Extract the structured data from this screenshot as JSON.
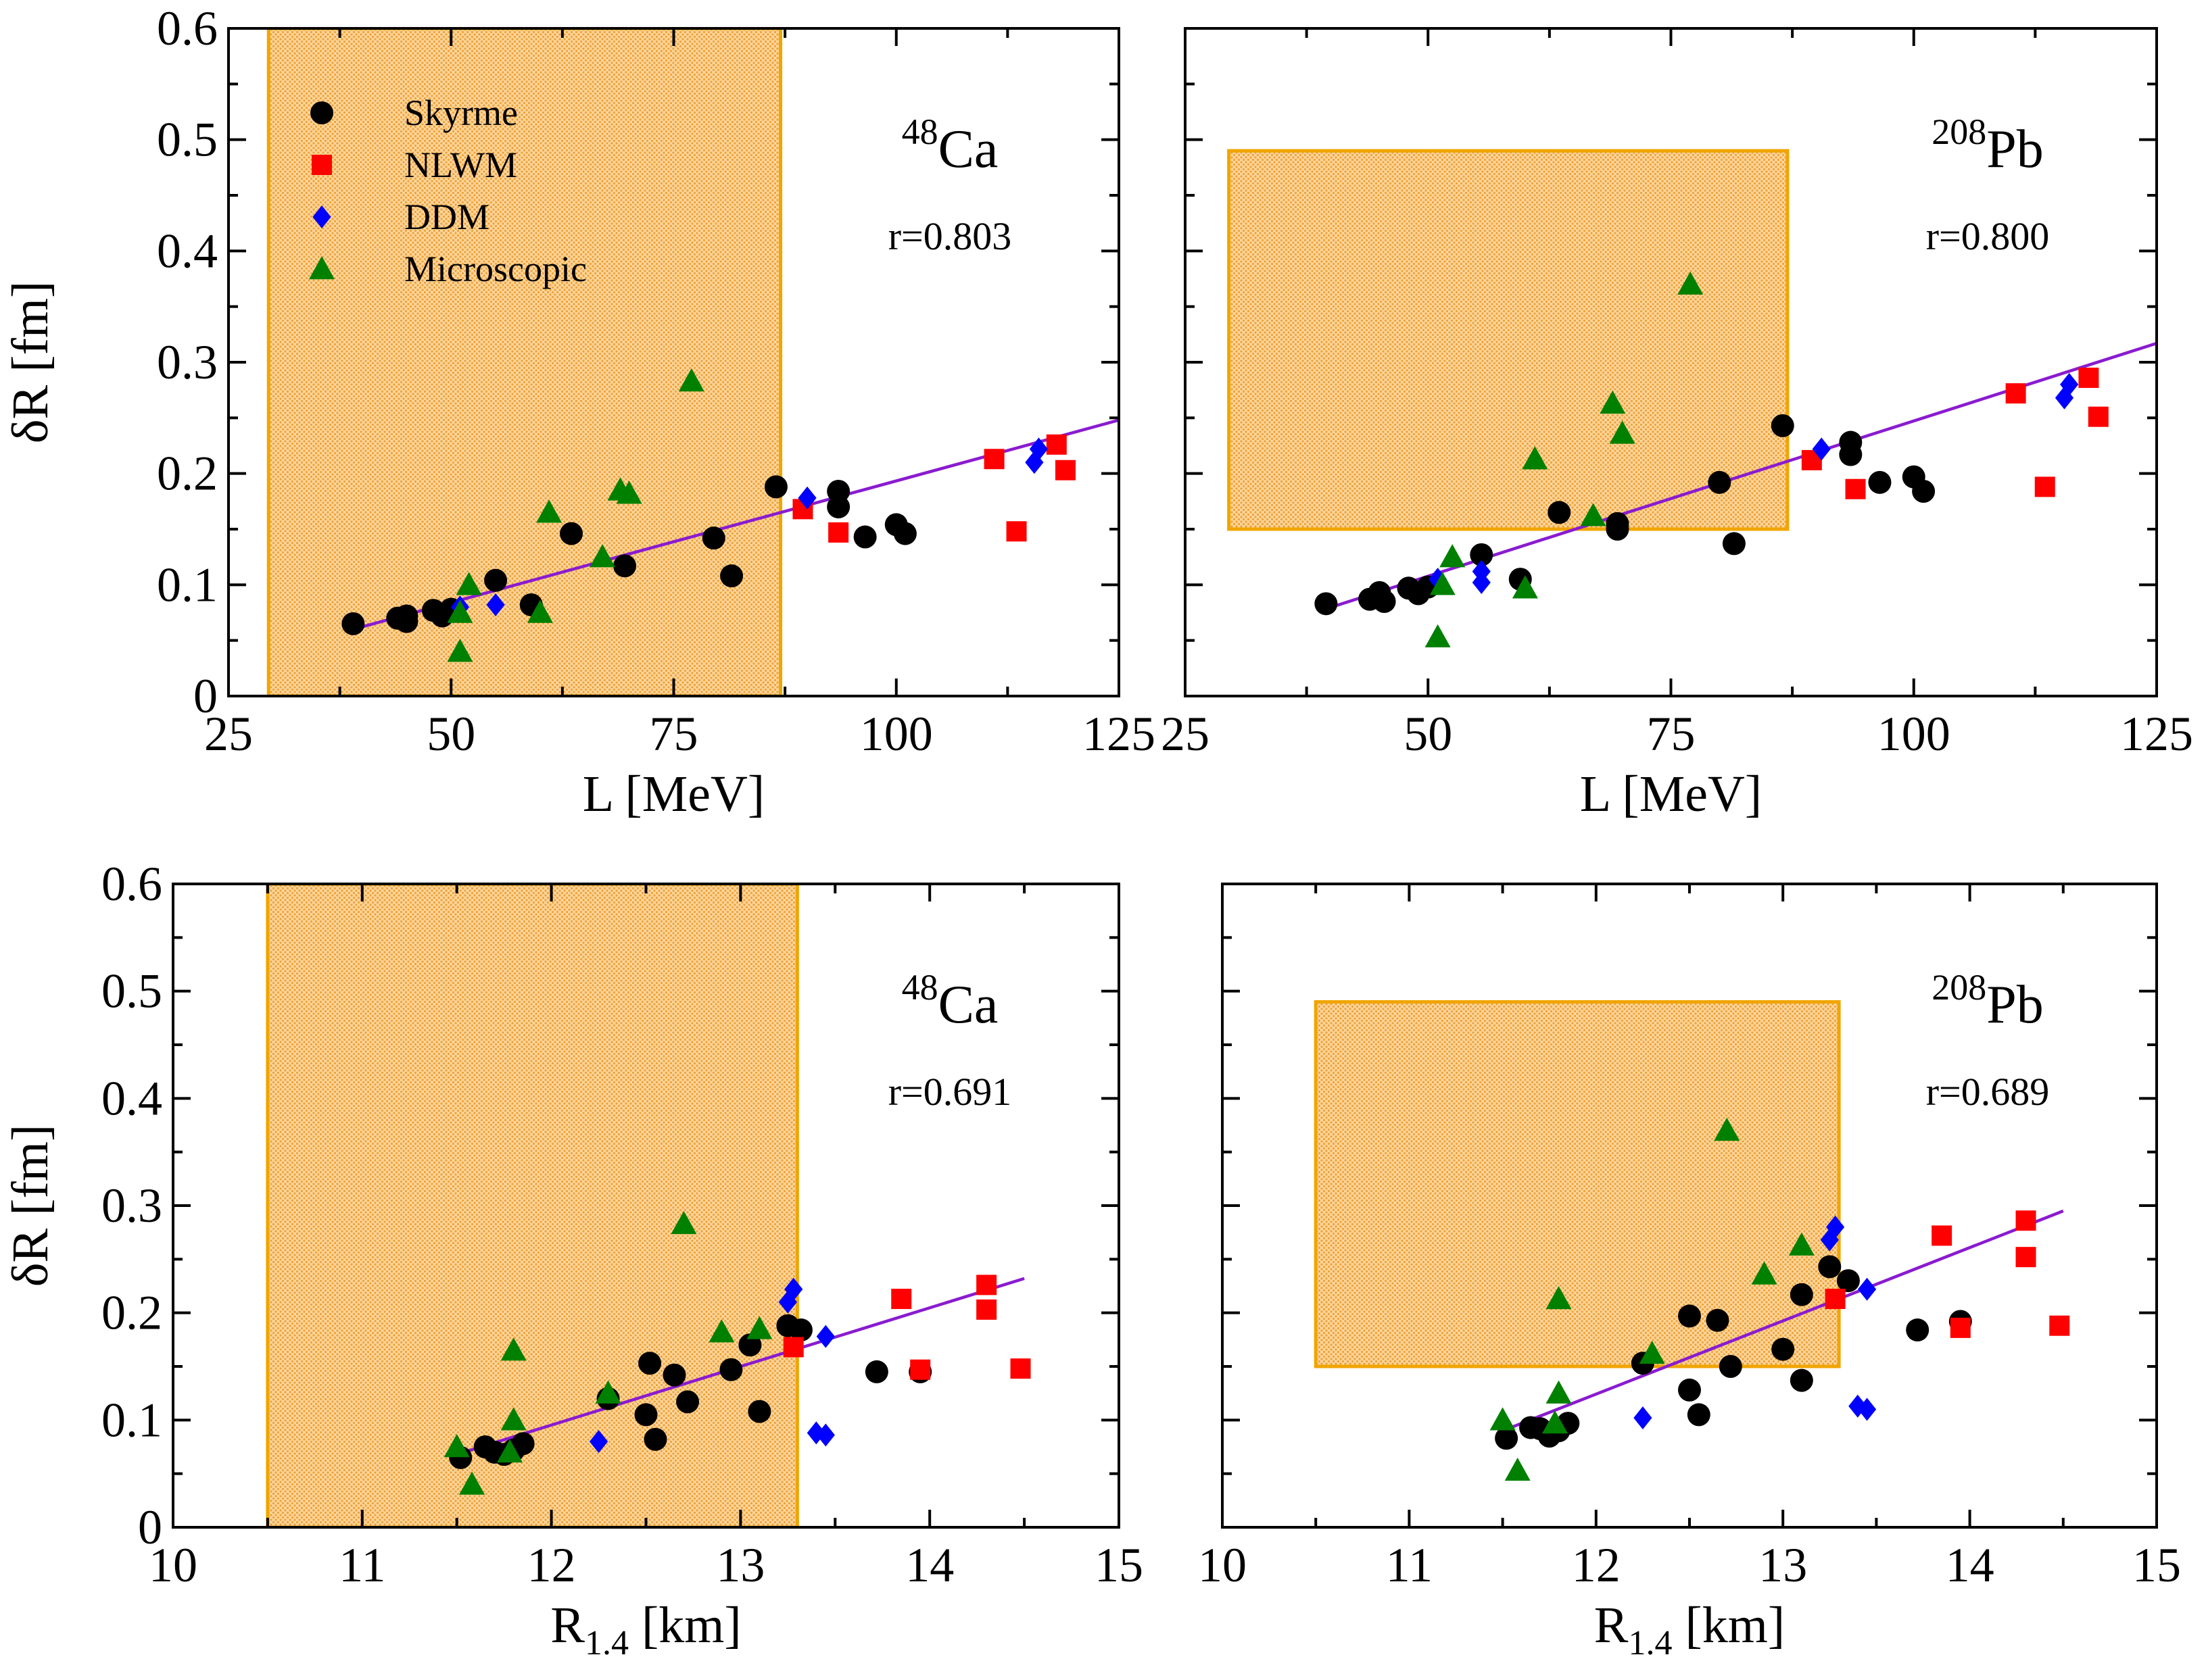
{
  "figure": {
    "legend": {
      "entries": [
        {
          "name": "Skyrme",
          "marker": "circle",
          "color": "#000000"
        },
        {
          "name": "NLWM",
          "marker": "square",
          "color": "#ff0000"
        },
        {
          "name": "DDM",
          "marker": "diamond",
          "color": "#0000ff"
        },
        {
          "name": "Microscopic",
          "marker": "triangle",
          "color": "#008000"
        }
      ]
    },
    "colors": {
      "fit_line": "#8a1bd0",
      "band_edge": "#f0a500",
      "band_fill": "#fbcf8a"
    }
  },
  "chart_data": [
    {
      "type": "scatter",
      "panel": "top-left",
      "nucleus": {
        "mass": "48",
        "symbol": "Ca"
      },
      "r_text": "r=0.803",
      "xlabel": "L [MeV]",
      "ylabel": "δR [fm]",
      "xlim": [
        25,
        125
      ],
      "ylim": [
        0,
        0.6
      ],
      "x_ticks": [
        "25",
        "50",
        "75",
        "100",
        "125"
      ],
      "y_ticks": [
        "0",
        "0.1",
        "0.2",
        "0.3",
        "0.4",
        "0.5",
        "0.6"
      ],
      "show_x_ticks": true,
      "show_y_ticks": true,
      "band": {
        "x": [
          29.5,
          87
        ],
        "y": [
          0,
          0.6
        ]
      },
      "fit_line": {
        "x": [
          39,
          125
        ],
        "y": [
          0.06,
          0.248
        ]
      },
      "series": [
        {
          "name": "Skyrme",
          "points": [
            [
              39,
              0.065
            ],
            [
              44,
              0.07
            ],
            [
              45,
              0.072
            ],
            [
              45,
              0.067
            ],
            [
              48,
              0.077
            ],
            [
              49,
              0.072
            ],
            [
              50,
              0.078
            ],
            [
              55,
              0.104
            ],
            [
              59,
              0.082
            ],
            [
              63.5,
              0.146
            ],
            [
              69.5,
              0.117
            ],
            [
              79.5,
              0.142
            ],
            [
              81.5,
              0.108
            ],
            [
              86.5,
              0.188
            ],
            [
              93.5,
              0.184
            ],
            [
              93.5,
              0.17
            ],
            [
              96.5,
              0.143
            ],
            [
              100,
              0.154
            ],
            [
              101,
              0.146
            ]
          ]
        },
        {
          "name": "NLWM",
          "points": [
            [
              89.5,
              0.168
            ],
            [
              93.5,
              0.147
            ],
            [
              111,
              0.213
            ],
            [
              113.5,
              0.148
            ],
            [
              118,
              0.226
            ],
            [
              119,
              0.203
            ]
          ]
        },
        {
          "name": "DDM",
          "points": [
            [
              51,
              0.08
            ],
            [
              55,
              0.082
            ],
            [
              90,
              0.178
            ],
            [
              116,
              0.222
            ],
            [
              115.5,
              0.21
            ]
          ]
        },
        {
          "name": "Microscopic",
          "points": [
            [
              51,
              0.04
            ],
            [
              51,
              0.075
            ],
            [
              52,
              0.1
            ],
            [
              60,
              0.075
            ],
            [
              61,
              0.165
            ],
            [
              67,
              0.125
            ],
            [
              69,
              0.185
            ],
            [
              70,
              0.182
            ],
            [
              77,
              0.283
            ]
          ]
        }
      ]
    },
    {
      "type": "scatter",
      "panel": "top-right",
      "nucleus": {
        "mass": "208",
        "symbol": "Pb"
      },
      "r_text": "r=0.800",
      "xlabel": "L [MeV]",
      "ylabel": "",
      "xlim": [
        25,
        125
      ],
      "ylim": [
        0,
        0.6
      ],
      "x_ticks": [
        "25",
        "50",
        "75",
        "100",
        "125"
      ],
      "y_ticks": [],
      "show_x_ticks": true,
      "show_y_ticks": false,
      "band": {
        "x": [
          29.5,
          87
        ],
        "y": [
          0.15,
          0.49
        ]
      },
      "fit_line": {
        "x": [
          39,
          125
        ],
        "y": [
          0.077,
          0.317
        ]
      },
      "series": [
        {
          "name": "Skyrme",
          "points": [
            [
              39.5,
              0.083
            ],
            [
              44,
              0.087
            ],
            [
              45,
              0.093
            ],
            [
              45.5,
              0.085
            ],
            [
              48,
              0.097
            ],
            [
              49,
              0.092
            ],
            [
              50,
              0.098
            ],
            [
              55.5,
              0.127
            ],
            [
              59.5,
              0.105
            ],
            [
              63.5,
              0.165
            ],
            [
              69.5,
              0.155
            ],
            [
              69.5,
              0.15
            ],
            [
              80,
              0.192
            ],
            [
              81.5,
              0.137
            ],
            [
              86.5,
              0.243
            ],
            [
              93.5,
              0.228
            ],
            [
              93.5,
              0.217
            ],
            [
              96.5,
              0.192
            ],
            [
              100,
              0.197
            ],
            [
              101,
              0.184
            ]
          ]
        },
        {
          "name": "NLWM",
          "points": [
            [
              89.5,
              0.212
            ],
            [
              94,
              0.186
            ],
            [
              110.5,
              0.272
            ],
            [
              113.5,
              0.188
            ],
            [
              118,
              0.286
            ],
            [
              119,
              0.251
            ]
          ]
        },
        {
          "name": "DDM",
          "points": [
            [
              51,
              0.105
            ],
            [
              55.5,
              0.112
            ],
            [
              55.5,
              0.102
            ],
            [
              90.5,
              0.222
            ],
            [
              115.5,
              0.268
            ],
            [
              116,
              0.28
            ]
          ]
        },
        {
          "name": "Microscopic",
          "points": [
            [
              51,
              0.053
            ],
            [
              51.5,
              0.1
            ],
            [
              52.5,
              0.125
            ],
            [
              60,
              0.097
            ],
            [
              61,
              0.213
            ],
            [
              67,
              0.162
            ],
            [
              69,
              0.263
            ],
            [
              70,
              0.236
            ],
            [
              77,
              0.37
            ]
          ]
        }
      ]
    },
    {
      "type": "scatter",
      "panel": "bottom-left",
      "nucleus": {
        "mass": "48",
        "symbol": "Ca"
      },
      "r_text": "r=0.691",
      "xlabel": "R1.4 [km]",
      "ylabel": "δR [fm]",
      "xlim": [
        10,
        15
      ],
      "ylim": [
        0,
        0.6
      ],
      "x_ticks": [
        "10",
        "11",
        "12",
        "13",
        "14",
        "15"
      ],
      "y_ticks": [
        "0",
        "0.1",
        "0.2",
        "0.3",
        "0.4",
        "0.5",
        "0.6"
      ],
      "show_x_ticks": true,
      "show_y_ticks": true,
      "band": {
        "x": [
          10.5,
          13.3
        ],
        "y": [
          0,
          0.6
        ]
      },
      "fit_line": {
        "x": [
          11.5,
          14.5
        ],
        "y": [
          0.068,
          0.232
        ]
      },
      "series": [
        {
          "name": "Skyrme",
          "points": [
            [
              11.52,
              0.065
            ],
            [
              11.65,
              0.075
            ],
            [
              11.7,
              0.07
            ],
            [
              11.75,
              0.068
            ],
            [
              11.8,
              0.072
            ],
            [
              11.85,
              0.078
            ],
            [
              12.3,
              0.12
            ],
            [
              12.5,
              0.105
            ],
            [
              12.52,
              0.153
            ],
            [
              12.55,
              0.082
            ],
            [
              12.65,
              0.142
            ],
            [
              12.72,
              0.117
            ],
            [
              12.95,
              0.147
            ],
            [
              13.05,
              0.17
            ],
            [
              13.1,
              0.108
            ],
            [
              13.25,
              0.188
            ],
            [
              13.32,
              0.184
            ],
            [
              13.72,
              0.145
            ],
            [
              13.95,
              0.145
            ]
          ]
        },
        {
          "name": "NLWM",
          "points": [
            [
              13.28,
              0.168
            ],
            [
              13.85,
              0.213
            ],
            [
              13.95,
              0.147
            ],
            [
              14.3,
              0.226
            ],
            [
              14.3,
              0.203
            ],
            [
              14.48,
              0.148
            ]
          ]
        },
        {
          "name": "DDM",
          "points": [
            [
              12.25,
              0.08
            ],
            [
              13.25,
              0.21
            ],
            [
              13.28,
              0.222
            ],
            [
              13.4,
              0.088
            ],
            [
              13.45,
              0.086
            ],
            [
              13.45,
              0.178
            ]
          ]
        },
        {
          "name": "Microscopic",
          "points": [
            [
              11.5,
              0.075
            ],
            [
              11.58,
              0.04
            ],
            [
              11.78,
              0.07
            ],
            [
              11.8,
              0.165
            ],
            [
              11.8,
              0.1
            ],
            [
              12.3,
              0.125
            ],
            [
              12.7,
              0.283
            ],
            [
              12.9,
              0.182
            ],
            [
              13.1,
              0.185
            ]
          ]
        }
      ]
    },
    {
      "type": "scatter",
      "panel": "bottom-right",
      "nucleus": {
        "mass": "208",
        "symbol": "Pb"
      },
      "r_text": "r=0.689",
      "xlabel": "R1.4 [km]",
      "ylabel": "",
      "xlim": [
        10,
        15
      ],
      "ylim": [
        0,
        0.6
      ],
      "x_ticks": [
        "10",
        "11",
        "12",
        "13",
        "14",
        "15"
      ],
      "y_ticks": [],
      "show_x_ticks": true,
      "show_y_ticks": false,
      "band": {
        "x": [
          10.5,
          13.3
        ],
        "y": [
          0.15,
          0.49
        ]
      },
      "fit_line": {
        "x": [
          11.5,
          14.5
        ],
        "y": [
          0.09,
          0.295
        ]
      },
      "series": [
        {
          "name": "Skyrme",
          "points": [
            [
              11.52,
              0.083
            ],
            [
              11.65,
              0.093
            ],
            [
              11.7,
              0.092
            ],
            [
              11.75,
              0.085
            ],
            [
              11.8,
              0.09
            ],
            [
              11.85,
              0.097
            ],
            [
              12.25,
              0.153
            ],
            [
              12.5,
              0.197
            ],
            [
              12.5,
              0.128
            ],
            [
              12.55,
              0.105
            ],
            [
              12.65,
              0.193
            ],
            [
              12.72,
              0.15
            ],
            [
              13.0,
              0.166
            ],
            [
              13.1,
              0.217
            ],
            [
              13.1,
              0.137
            ],
            [
              13.25,
              0.243
            ],
            [
              13.35,
              0.23
            ],
            [
              13.72,
              0.184
            ],
            [
              13.95,
              0.192
            ]
          ]
        },
        {
          "name": "NLWM",
          "points": [
            [
              13.28,
              0.213
            ],
            [
              13.85,
              0.272
            ],
            [
              13.95,
              0.186
            ],
            [
              14.3,
              0.286
            ],
            [
              14.3,
              0.252
            ],
            [
              14.48,
              0.188
            ]
          ]
        },
        {
          "name": "DDM",
          "points": [
            [
              12.25,
              0.102
            ],
            [
              13.25,
              0.268
            ],
            [
              13.28,
              0.28
            ],
            [
              13.4,
              0.113
            ],
            [
              13.45,
              0.11
            ],
            [
              13.45,
              0.222
            ]
          ]
        },
        {
          "name": "Microscopic",
          "points": [
            [
              11.5,
              0.1
            ],
            [
              11.58,
              0.053
            ],
            [
              11.78,
              0.097
            ],
            [
              11.8,
              0.213
            ],
            [
              11.8,
              0.125
            ],
            [
              12.3,
              0.162
            ],
            [
              12.7,
              0.37
            ],
            [
              12.9,
              0.236
            ],
            [
              13.1,
              0.263
            ]
          ]
        }
      ]
    }
  ]
}
